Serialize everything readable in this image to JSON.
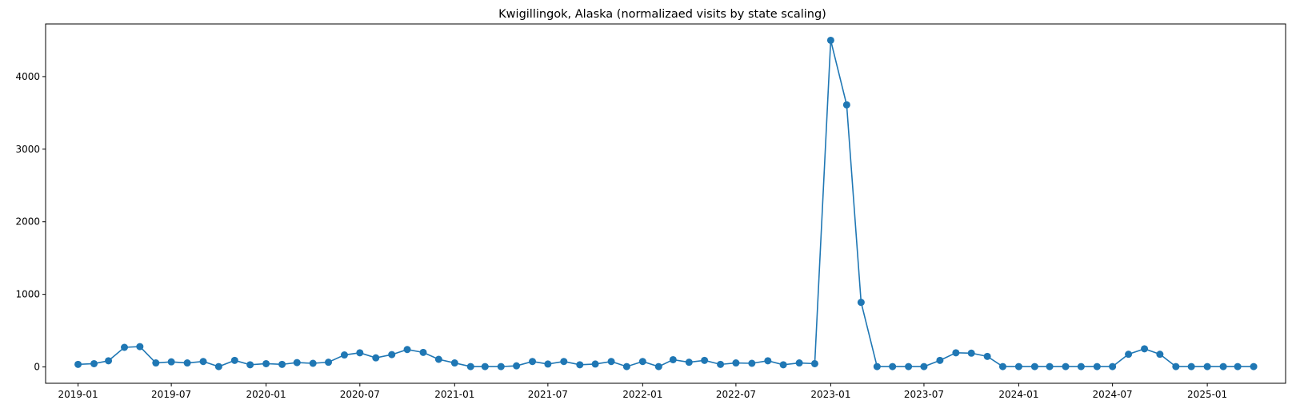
{
  "chart_data": {
    "type": "line",
    "title": "Kwigillingok, Alaska (normalizaed visits by state scaling)",
    "xlabel": "",
    "ylabel": "",
    "xlim": [
      "2018-10-30",
      "2025-06-02"
    ],
    "ylim": [
      -225,
      4725
    ],
    "grid": false,
    "legend": "none",
    "color": "#1f77b4",
    "x_ticks": [
      "2019-01",
      "2019-07",
      "2020-01",
      "2020-07",
      "2021-01",
      "2021-07",
      "2022-01",
      "2022-07",
      "2023-01",
      "2023-07",
      "2024-01",
      "2024-07",
      "2025-01"
    ],
    "y_ticks": [
      0,
      1000,
      2000,
      3000,
      4000
    ],
    "series": [
      {
        "x": [
          "2019-01-01",
          "2019-02-01",
          "2019-03-01",
          "2019-04-01",
          "2019-05-01",
          "2019-06-01",
          "2019-07-01",
          "2019-08-01",
          "2019-09-01",
          "2019-10-01",
          "2019-11-01",
          "2019-12-01",
          "2020-01-01",
          "2020-02-01",
          "2020-03-01",
          "2020-04-01",
          "2020-05-01",
          "2020-06-01",
          "2020-07-01",
          "2020-08-01",
          "2020-09-01",
          "2020-10-01",
          "2020-11-01",
          "2020-12-01",
          "2021-01-01",
          "2021-02-01",
          "2021-03-01",
          "2021-04-01",
          "2021-05-01",
          "2021-06-01",
          "2021-07-01",
          "2021-08-01",
          "2021-09-01",
          "2021-10-01",
          "2021-11-01",
          "2021-12-01",
          "2022-01-01",
          "2022-02-01",
          "2022-03-01",
          "2022-04-01",
          "2022-05-01",
          "2022-06-01",
          "2022-07-01",
          "2022-08-01",
          "2022-09-01",
          "2022-10-01",
          "2022-11-01",
          "2022-12-01",
          "2023-01-01",
          "2023-02-01",
          "2023-03-01",
          "2023-04-01",
          "2023-05-01",
          "2023-06-01",
          "2023-07-01",
          "2023-08-01",
          "2023-09-01",
          "2023-10-01",
          "2023-11-01",
          "2023-12-01",
          "2024-01-01",
          "2024-02-01",
          "2024-03-01",
          "2024-04-01",
          "2024-05-01",
          "2024-06-01",
          "2024-07-01",
          "2024-08-01",
          "2024-09-01",
          "2024-10-01",
          "2024-11-01",
          "2024-12-01",
          "2025-01-01",
          "2025-02-01",
          "2025-03-01",
          "2025-04-01"
        ],
        "y": [
          35,
          45,
          85,
          270,
          280,
          55,
          70,
          55,
          75,
          5,
          90,
          30,
          45,
          35,
          60,
          50,
          65,
          165,
          195,
          125,
          170,
          240,
          200,
          105,
          55,
          5,
          5,
          5,
          15,
          75,
          40,
          75,
          30,
          40,
          75,
          5,
          75,
          5,
          100,
          65,
          90,
          35,
          55,
          50,
          85,
          30,
          55,
          45,
          4500,
          3610,
          890,
          5,
          5,
          5,
          5,
          90,
          195,
          190,
          145,
          5,
          5,
          5,
          5,
          5,
          5,
          5,
          5,
          175,
          250,
          175,
          5,
          5,
          5,
          5,
          5,
          5
        ]
      }
    ]
  }
}
